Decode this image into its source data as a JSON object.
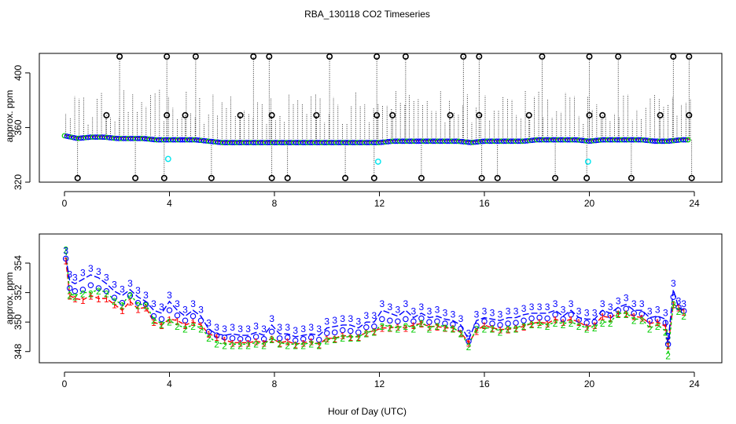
{
  "title": "RBA_130118  CO2 Timeseries",
  "xlabel": "Hour of Day (UTC)",
  "colors": {
    "series1": "#ff0000",
    "series2": "#00cc00",
    "series3": "#0000ff",
    "circle": "#000000",
    "flag": "#00e5ee",
    "axis": "#000000"
  },
  "chart_data": [
    {
      "type": "scatter",
      "panel": "top",
      "ylabel": "approx. ppm",
      "xlim": [
        0,
        24
      ],
      "ylim": [
        320,
        412
      ],
      "xticks": [
        0,
        4,
        8,
        12,
        16,
        20,
        24
      ],
      "yticks": [
        320,
        360,
        400
      ],
      "baseline_hours": [
        0.0,
        0.5,
        1.0,
        1.5,
        2.0,
        2.5,
        3.0,
        3.5,
        4.0,
        4.5,
        5.0,
        5.5,
        6.0,
        6.5,
        7.0,
        7.5,
        8.0,
        8.5,
        9.0,
        9.5,
        10.0,
        10.5,
        11.0,
        11.5,
        12.0,
        12.5,
        13.0,
        13.5,
        14.0,
        14.5,
        15.0,
        15.5,
        16.0,
        16.5,
        17.0,
        17.5,
        18.0,
        18.5,
        19.0,
        19.5,
        20.0,
        20.5,
        21.0,
        21.5,
        22.0,
        22.5,
        23.0,
        23.5,
        23.8
      ],
      "baseline_ppm": [
        354,
        352,
        353,
        353,
        352,
        352,
        352,
        351,
        351,
        351,
        351,
        350,
        349,
        349,
        349,
        349,
        349,
        349,
        349,
        349,
        349,
        349,
        349,
        349,
        349,
        350,
        350,
        350,
        350,
        350,
        350,
        349,
        350,
        350,
        350,
        350,
        351,
        351,
        351,
        351,
        350,
        351,
        351,
        351,
        351,
        350,
        350,
        351,
        351
      ],
      "high_outliers_hours": [
        2.1,
        3.9,
        5.0,
        7.2,
        7.8,
        10.1,
        11.9,
        13.0,
        15.2,
        15.8,
        18.2,
        20.0,
        21.1,
        23.2,
        23.8
      ],
      "high_outlier_ppm": 412,
      "mid_outliers_hours": [
        1.6,
        3.9,
        4.6,
        6.7,
        7.9,
        9.6,
        11.9,
        12.5,
        14.7,
        15.8,
        17.7,
        20.0,
        20.5,
        22.7,
        23.8
      ],
      "mid_outlier_ppm": 369,
      "low_outliers_hours": [
        0.5,
        2.7,
        3.8,
        5.6,
        7.9,
        8.5,
        10.7,
        11.8,
        13.6,
        15.9,
        16.5,
        18.7,
        19.9,
        21.6,
        23.9
      ],
      "low_outlier_ppm": 323,
      "flag_points": [
        {
          "hour": 3.95,
          "ppm": 337
        },
        {
          "hour": 11.95,
          "ppm": 335
        },
        {
          "hour": 19.95,
          "ppm": 335
        }
      ]
    },
    {
      "type": "line",
      "panel": "bottom",
      "ylabel": "approx. ppm",
      "xlim": [
        0,
        24
      ],
      "ylim": [
        347.4,
        355.6
      ],
      "xticks": [
        0,
        4,
        8,
        12,
        16,
        20,
        24
      ],
      "yticks": [
        348,
        350,
        352,
        354
      ],
      "series": [
        {
          "name": "1",
          "hours": [
            0.05,
            0.2,
            0.4,
            0.7,
            1.0,
            1.3,
            1.6,
            1.9,
            2.2,
            2.5,
            2.8,
            3.1,
            3.4,
            3.7,
            4.0,
            4.3,
            4.6,
            4.9,
            5.2,
            5.5,
            5.8,
            6.1,
            6.4,
            6.7,
            7.0,
            7.3,
            7.6,
            7.9,
            8.2,
            8.5,
            8.8,
            9.1,
            9.4,
            9.7,
            10.0,
            10.3,
            10.6,
            10.9,
            11.2,
            11.5,
            11.8,
            12.1,
            12.4,
            12.7,
            13.0,
            13.3,
            13.6,
            13.9,
            14.2,
            14.5,
            14.8,
            15.1,
            15.4,
            15.7,
            16.0,
            16.3,
            16.6,
            16.9,
            17.2,
            17.5,
            17.8,
            18.1,
            18.4,
            18.7,
            19.0,
            19.3,
            19.6,
            19.9,
            20.2,
            20.5,
            20.8,
            21.1,
            21.4,
            21.7,
            22.0,
            22.3,
            22.6,
            22.9,
            23.0,
            23.2,
            23.4,
            23.6
          ],
          "ppm": [
            354.2,
            351.8,
            351.6,
            351.5,
            351.8,
            351.6,
            351.6,
            351.2,
            350.8,
            351.4,
            350.9,
            351.0,
            350.0,
            349.8,
            350.2,
            350.1,
            349.8,
            350.0,
            349.8,
            349.2,
            349.0,
            348.8,
            348.6,
            348.6,
            348.6,
            348.7,
            348.6,
            348.9,
            348.6,
            348.7,
            348.5,
            348.6,
            348.7,
            348.5,
            348.9,
            348.9,
            349.1,
            349.0,
            349.0,
            349.3,
            349.4,
            349.6,
            349.6,
            349.7,
            349.6,
            349.8,
            349.9,
            349.7,
            349.7,
            349.6,
            349.6,
            349.3,
            348.6,
            349.4,
            349.8,
            349.6,
            349.5,
            349.5,
            349.6,
            349.7,
            349.9,
            350.0,
            349.9,
            350.2,
            350.0,
            350.2,
            350.0,
            349.7,
            349.8,
            350.4,
            350.3,
            350.6,
            350.6,
            350.4,
            350.3,
            349.9,
            350.0,
            349.7,
            348.4,
            351.2,
            351.0,
            350.7
          ]
        },
        {
          "name": "2",
          "hours": [
            0.05,
            0.2,
            0.4,
            0.7,
            1.0,
            1.3,
            1.6,
            1.9,
            2.2,
            2.5,
            2.8,
            3.1,
            3.4,
            3.7,
            4.0,
            4.3,
            4.6,
            4.9,
            5.2,
            5.5,
            5.8,
            6.1,
            6.4,
            6.7,
            7.0,
            7.3,
            7.6,
            7.9,
            8.2,
            8.5,
            8.8,
            9.1,
            9.4,
            9.7,
            10.0,
            10.3,
            10.6,
            10.9,
            11.2,
            11.5,
            11.8,
            12.1,
            12.4,
            12.7,
            13.0,
            13.3,
            13.6,
            13.9,
            14.2,
            14.5,
            14.8,
            15.1,
            15.4,
            15.7,
            16.0,
            16.3,
            16.6,
            16.9,
            17.2,
            17.5,
            17.8,
            18.1,
            18.4,
            18.7,
            19.0,
            19.3,
            19.6,
            19.9,
            20.2,
            20.5,
            20.8,
            21.1,
            21.4,
            21.7,
            22.0,
            22.3,
            22.6,
            22.9,
            23.0,
            23.2,
            23.4,
            23.6
          ],
          "ppm": [
            355.0,
            351.9,
            351.8,
            352.0,
            352.0,
            352.2,
            352.0,
            351.5,
            351.2,
            351.9,
            351.2,
            351.2,
            350.2,
            349.9,
            350.1,
            349.8,
            349.6,
            349.8,
            349.6,
            349.0,
            348.6,
            348.5,
            348.5,
            348.5,
            348.5,
            348.6,
            348.5,
            348.9,
            348.6,
            348.5,
            348.5,
            348.5,
            348.6,
            348.5,
            348.8,
            348.9,
            349.0,
            349.0,
            349.0,
            349.3,
            349.4,
            349.8,
            349.7,
            349.6,
            349.8,
            349.6,
            350.0,
            349.6,
            349.8,
            349.7,
            349.6,
            349.3,
            348.4,
            349.6,
            349.6,
            349.6,
            349.4,
            349.6,
            349.6,
            349.8,
            349.9,
            349.9,
            349.8,
            350.0,
            349.9,
            350.0,
            349.8,
            349.6,
            349.7,
            350.0,
            350.0,
            350.6,
            350.6,
            350.2,
            350.2,
            349.6,
            349.8,
            349.4,
            347.8,
            351.3,
            350.8,
            350.5
          ]
        },
        {
          "name": "3",
          "hours": [
            0.05,
            0.2,
            0.4,
            0.7,
            1.0,
            1.3,
            1.6,
            1.9,
            2.2,
            2.5,
            2.8,
            3.1,
            3.4,
            3.7,
            4.0,
            4.3,
            4.6,
            4.9,
            5.2,
            5.5,
            5.8,
            6.1,
            6.4,
            6.7,
            7.0,
            7.3,
            7.6,
            7.9,
            8.2,
            8.5,
            8.8,
            9.1,
            9.4,
            9.7,
            10.0,
            10.3,
            10.6,
            10.9,
            11.2,
            11.5,
            11.8,
            12.1,
            12.4,
            12.7,
            13.0,
            13.3,
            13.6,
            13.9,
            14.2,
            14.5,
            14.8,
            15.1,
            15.4,
            15.7,
            16.0,
            16.3,
            16.6,
            16.9,
            17.2,
            17.5,
            17.8,
            18.1,
            18.4,
            18.7,
            19.0,
            19.3,
            19.6,
            19.9,
            20.2,
            20.5,
            20.8,
            21.1,
            21.4,
            21.7,
            22.0,
            22.3,
            22.6,
            22.9,
            23.0,
            23.2,
            23.4,
            23.6
          ],
          "ppm": [
            354.4,
            352.8,
            352.6,
            352.9,
            353.2,
            353.0,
            352.6,
            352.1,
            351.8,
            352.2,
            351.7,
            351.4,
            350.8,
            350.6,
            351.4,
            350.8,
            350.4,
            350.8,
            350.4,
            349.5,
            349.2,
            349.1,
            349.2,
            349.1,
            349.1,
            349.3,
            349.1,
            349.8,
            349.2,
            349.2,
            349.0,
            349.1,
            349.2,
            349.1,
            349.6,
            349.7,
            349.8,
            349.8,
            349.6,
            350.0,
            350.0,
            350.8,
            350.6,
            350.4,
            350.8,
            350.3,
            350.6,
            350.3,
            350.4,
            350.2,
            350.1,
            349.8,
            348.8,
            350.1,
            350.3,
            350.2,
            350.1,
            350.3,
            350.3,
            350.5,
            350.6,
            350.6,
            350.6,
            350.8,
            350.4,
            350.8,
            350.3,
            350.2,
            350.2,
            350.8,
            350.6,
            351.0,
            351.2,
            350.8,
            350.8,
            350.3,
            350.4,
            350.2,
            348.6,
            352.2,
            351.0,
            350.8
          ]
        }
      ]
    }
  ]
}
